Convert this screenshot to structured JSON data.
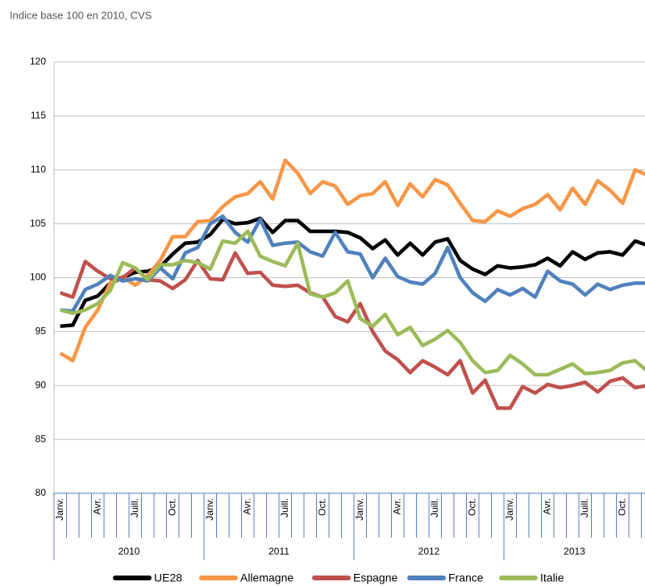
{
  "chart_data": {
    "type": "line",
    "subtitle": "Indice base 100 en 2010, CVS",
    "categories": [
      "Janv.",
      null,
      null,
      "Avr.",
      null,
      null,
      "Juill.",
      null,
      null,
      "Oct.",
      null,
      null,
      "Janv.",
      null,
      null,
      "Avr.",
      null,
      null,
      "Juill.",
      null,
      null,
      "Oct.",
      null,
      null,
      "Janv.",
      null,
      null,
      "Avr.",
      null,
      null,
      "Juill.",
      null,
      null,
      "Oct.",
      null,
      null,
      "Janv.",
      null,
      null,
      "Avr.",
      null,
      null,
      "Juill.",
      null,
      null,
      "Oct.",
      null,
      null
    ],
    "years": [
      "2010",
      "2011",
      "2012",
      "2013"
    ],
    "ylim": [
      80,
      120
    ],
    "yticks": [
      80,
      85,
      90,
      95,
      100,
      105,
      110,
      115,
      120
    ],
    "grid": true,
    "legend": "bottom",
    "series": [
      {
        "name": "UE28",
        "color": "#000000",
        "values": [
          95.5,
          95.6,
          97.9,
          98.3,
          99.5,
          100.0,
          100.5,
          100.6,
          101.0,
          102.2,
          103.2,
          103.3,
          104.0,
          105.4,
          105.0,
          105.1,
          105.5,
          104.2,
          105.3,
          105.3,
          104.3,
          104.3,
          104.3,
          104.2,
          103.7,
          102.7,
          103.5,
          102.1,
          103.2,
          102.1,
          103.3,
          103.6,
          101.6,
          100.8,
          100.3,
          101.1,
          100.9,
          101.0,
          101.2,
          101.8,
          101.1,
          102.4,
          101.7,
          102.3,
          102.4,
          102.1,
          103.4,
          103.0
        ]
      },
      {
        "name": "Allemagne",
        "color": "#f79646",
        "values": [
          93.0,
          92.3,
          95.4,
          97.0,
          99.5,
          100.1,
          99.3,
          100.2,
          101.6,
          103.8,
          103.8,
          105.2,
          105.3,
          106.6,
          107.5,
          107.8,
          108.9,
          107.3,
          110.9,
          109.7,
          107.8,
          108.9,
          108.5,
          106.8,
          107.6,
          107.8,
          108.9,
          106.7,
          108.7,
          107.5,
          109.1,
          108.6,
          106.9,
          105.3,
          105.2,
          106.2,
          105.7,
          106.4,
          106.8,
          107.7,
          106.3,
          108.3,
          106.8,
          109.0,
          108.1,
          106.9,
          110.0,
          109.5
        ]
      },
      {
        "name": "Espagne",
        "color": "#c0504d",
        "values": [
          98.6,
          98.2,
          101.5,
          100.6,
          99.9,
          100.0,
          100.9,
          99.8,
          99.7,
          99.0,
          99.8,
          101.6,
          99.9,
          99.8,
          102.3,
          100.4,
          100.5,
          99.3,
          99.2,
          99.3,
          98.6,
          98.2,
          96.4,
          95.9,
          97.6,
          95.0,
          93.2,
          92.4,
          91.2,
          92.3,
          91.7,
          91.0,
          92.3,
          89.3,
          90.5,
          87.9,
          87.9,
          89.9,
          89.3,
          90.1,
          89.8,
          90.0,
          90.3,
          89.4,
          90.4,
          90.7,
          89.8,
          90.0
        ]
      },
      {
        "name": "France",
        "color": "#4f81bd",
        "values": [
          97.0,
          96.9,
          98.9,
          99.4,
          100.2,
          99.7,
          99.9,
          99.7,
          100.9,
          99.9,
          102.3,
          102.8,
          105.0,
          105.7,
          104.2,
          103.3,
          105.4,
          103.0,
          103.2,
          103.3,
          102.4,
          102.0,
          104.2,
          102.4,
          102.2,
          100.0,
          101.8,
          100.1,
          99.6,
          99.4,
          100.4,
          102.8,
          100.0,
          98.6,
          97.8,
          98.9,
          98.4,
          99.0,
          98.2,
          100.6,
          99.7,
          99.4,
          98.4,
          99.4,
          98.9,
          99.3,
          99.5,
          99.5
        ]
      },
      {
        "name": "Italie",
        "color": "#9bbb59",
        "values": [
          97.0,
          96.7,
          97.0,
          97.6,
          98.8,
          101.4,
          100.9,
          99.8,
          101.2,
          101.2,
          101.6,
          101.4,
          100.8,
          103.4,
          103.2,
          104.3,
          102.0,
          101.5,
          101.1,
          103.2,
          98.5,
          98.2,
          98.6,
          99.7,
          96.2,
          95.5,
          96.6,
          94.7,
          95.4,
          93.7,
          94.3,
          95.1,
          94.0,
          92.3,
          91.2,
          91.4,
          92.8,
          92.0,
          91.0,
          91.0,
          91.5,
          92.0,
          91.1,
          91.2,
          91.4,
          92.1,
          92.3,
          91.3
        ]
      }
    ]
  }
}
